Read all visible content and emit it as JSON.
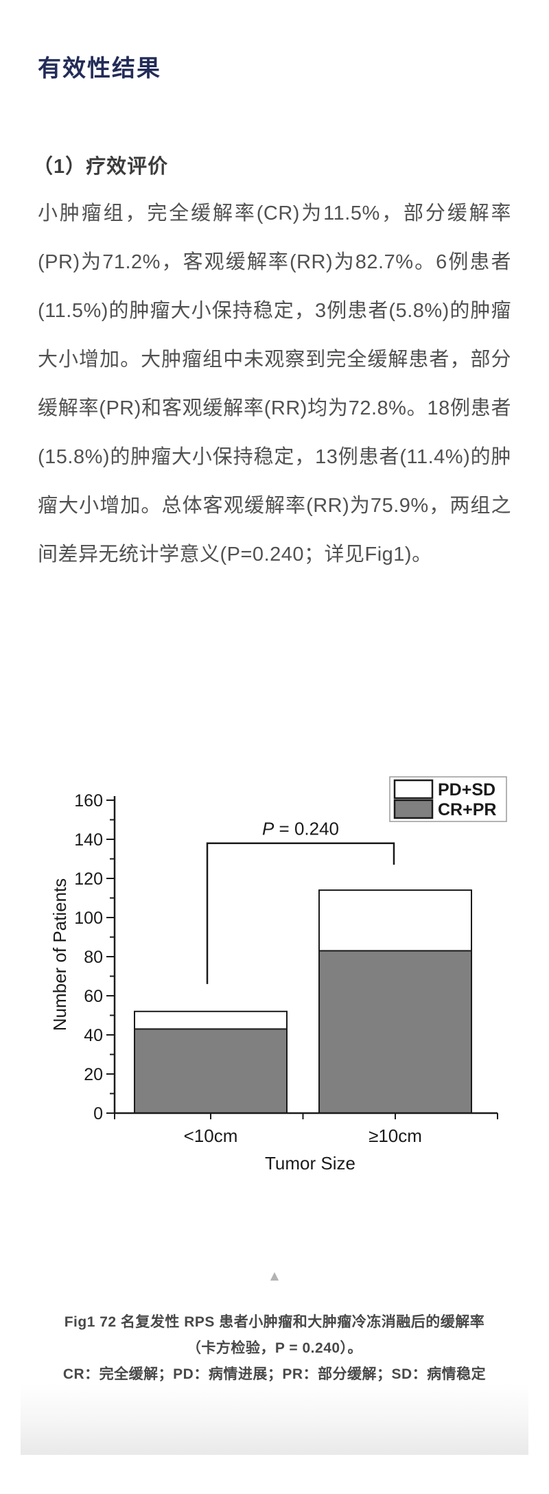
{
  "heading": {
    "title": "有效性结果",
    "color": "#232c58"
  },
  "section": {
    "subheading": "（1）疗效评价",
    "paragraph": "小肿瘤组，完全缓解率(CR)为11.5%，部分缓解率(PR)为71.2%，客观缓解率(RR)为82.7%。6例患者(11.5%)的肿瘤大小保持稳定，3例患者(5.8%)的肿瘤大小增加。大肿瘤组中未观察到完全缓解患者，部分缓解率(PR)和客观缓解率(RR)均为72.8%。18例患者(15.8%)的肿瘤大小保持稳定，13例患者(11.4%)的肿瘤大小增加。总体客观缓解率(RR)为75.9%，两组之间差异无统计学意义(P=0.240；详见Fig1)。"
  },
  "chart_data": {
    "type": "bar",
    "stacked": true,
    "categories": [
      "<10cm",
      "≥10cm"
    ],
    "series": [
      {
        "name": "CR+PR",
        "values": [
          43,
          83
        ],
        "color": "#808080"
      },
      {
        "name": "PD+SD",
        "values": [
          9,
          31
        ],
        "color": "#ffffff"
      }
    ],
    "totals": [
      52,
      114
    ],
    "title": "",
    "xlabel": "Tumor Size",
    "ylabel": "Number of Patients",
    "ylim": [
      0,
      160
    ],
    "ytick_step": 20,
    "minor_tick_step": 10,
    "grid": false,
    "legend_position": "top-right",
    "legend_order": [
      "PD+SD",
      "CR+PR"
    ],
    "axis_color": "#1a1a1a",
    "p_bracket": {
      "label_p": "P",
      "label_rest": " = 0.240",
      "y_value": 138,
      "leg1_bottom": 66,
      "leg2_bottom": 127
    }
  },
  "icons": {
    "collapse_triangle": "▲"
  },
  "caption": {
    "line1": "Fig1 72 名复发性 RPS 患者小肿瘤和大肿瘤冷冻消融后的缓解率",
    "line2": "（卡方检验，P = 0.240）。",
    "line3": "CR：完全缓解；PD：病情进展；PR：部分缓解；SD：病情稳定"
  }
}
